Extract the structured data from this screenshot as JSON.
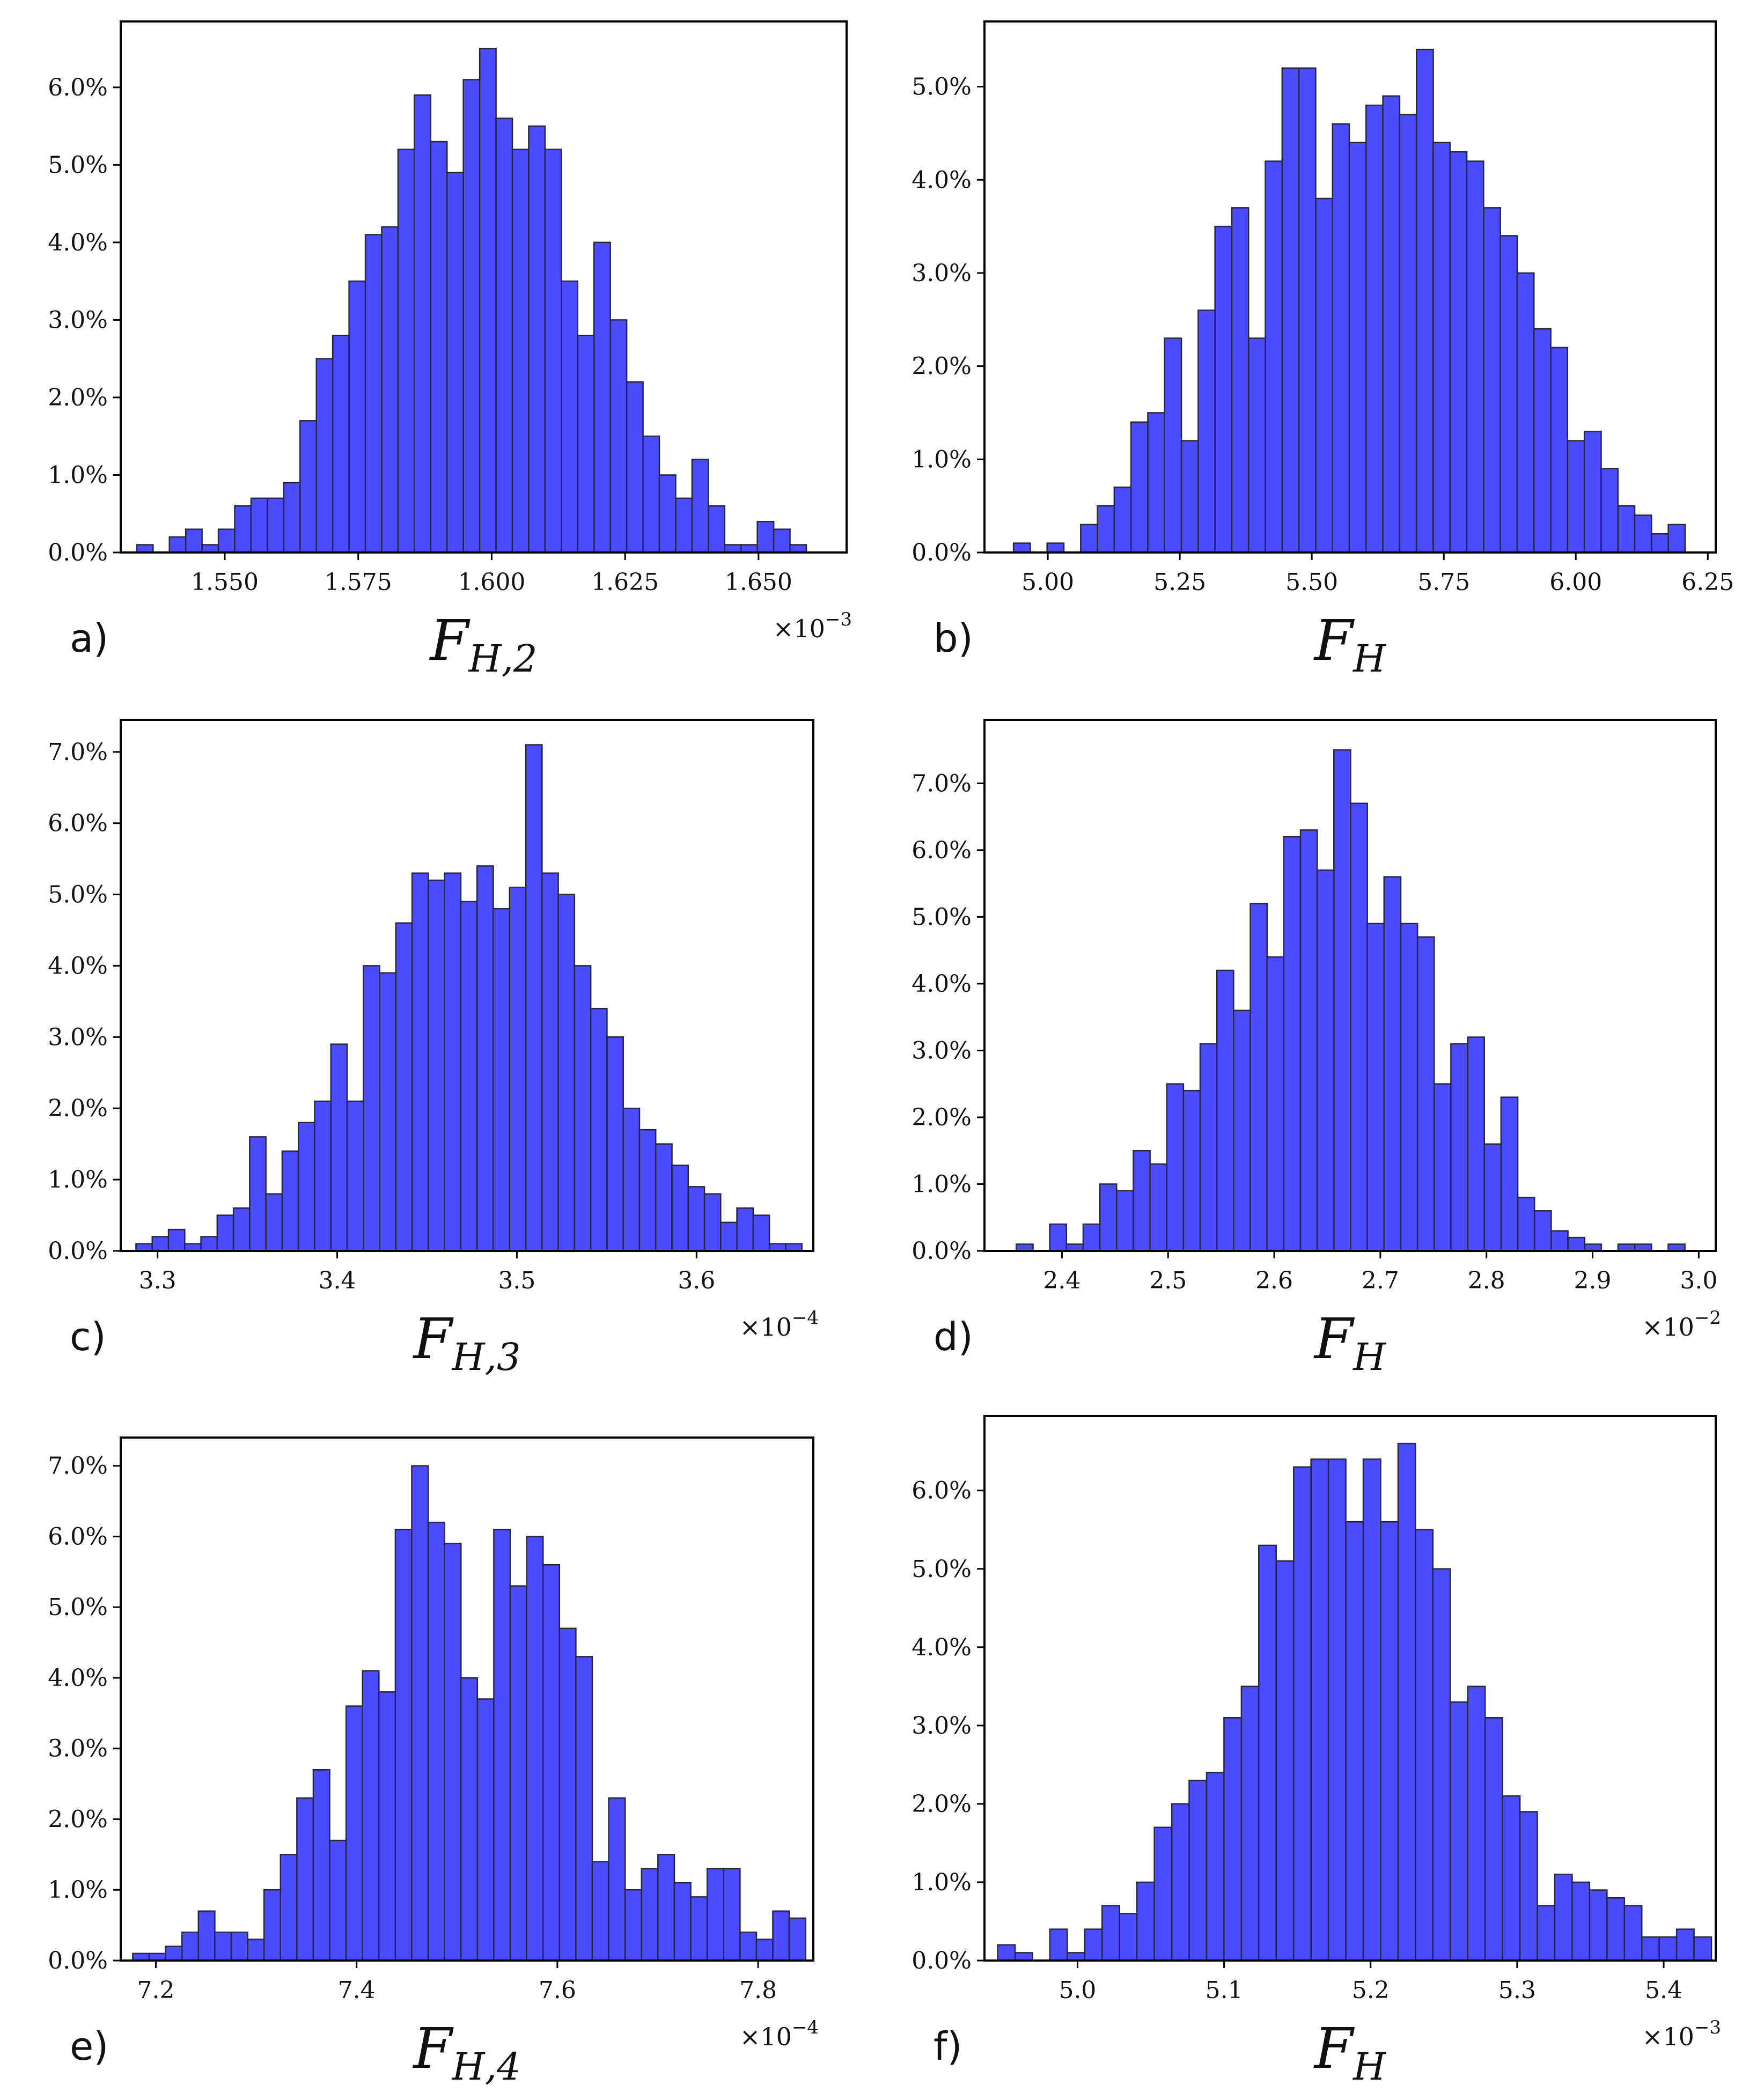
{
  "chart_data": [
    {
      "type": "bar",
      "panel": "a)",
      "xlabel_main": "F",
      "xlabel_sub": "H,2",
      "offset_base": "×10",
      "offset_exp": "−3",
      "ylabel": "",
      "xlim": [
        1.5305,
        1.6665
      ],
      "ylim": [
        0,
        6.85
      ],
      "xticks": [
        1.55,
        1.575,
        1.6,
        1.625,
        1.65
      ],
      "xtick_labels": [
        "1.550",
        "1.575",
        "1.600",
        "1.625",
        "1.650"
      ],
      "yticks": [
        0,
        1,
        2,
        3,
        4,
        5,
        6
      ],
      "ytick_labels": [
        "0.0%",
        "1.0%",
        "2.0%",
        "3.0%",
        "4.0%",
        "5.0%",
        "6.0%"
      ],
      "bin_start": 1.5335,
      "bin_width": 0.00306,
      "values": [
        0.1,
        0.0,
        0.2,
        0.3,
        0.1,
        0.3,
        0.6,
        0.7,
        0.7,
        0.9,
        1.7,
        2.5,
        2.8,
        3.5,
        4.1,
        4.2,
        5.2,
        5.9,
        5.3,
        4.9,
        6.1,
        6.5,
        5.6,
        5.2,
        5.5,
        5.2,
        3.5,
        2.8,
        4.0,
        3.0,
        2.2,
        1.5,
        1.0,
        0.7,
        1.2,
        0.6,
        0.1,
        0.1,
        0.4,
        0.3,
        0.1
      ]
    },
    {
      "type": "bar",
      "panel": "b)",
      "xlabel_main": "F",
      "xlabel_sub": "H",
      "offset_base": "",
      "offset_exp": "",
      "ylabel": "",
      "xlim": [
        4.88,
        6.265
      ],
      "ylim": [
        0,
        5.7
      ],
      "xticks": [
        5.0,
        5.25,
        5.5,
        5.75,
        6.0,
        6.25
      ],
      "xtick_labels": [
        "5.00",
        "5.25",
        "5.50",
        "5.75",
        "6.00",
        "6.25"
      ],
      "yticks": [
        0,
        1,
        2,
        3,
        4,
        5
      ],
      "ytick_labels": [
        "0.0%",
        "1.0%",
        "2.0%",
        "3.0%",
        "4.0%",
        "5.0%"
      ],
      "bin_start": 4.935,
      "bin_width": 0.0318,
      "values": [
        0.1,
        0.0,
        0.1,
        0.0,
        0.3,
        0.5,
        0.7,
        1.4,
        1.5,
        2.3,
        1.2,
        2.6,
        3.5,
        3.7,
        2.3,
        4.2,
        5.2,
        5.2,
        3.8,
        4.6,
        4.4,
        4.8,
        4.9,
        4.7,
        5.4,
        4.4,
        4.3,
        4.2,
        3.7,
        3.4,
        3.0,
        2.4,
        2.2,
        1.2,
        1.3,
        0.9,
        0.5,
        0.4,
        0.2,
        0.3
      ]
    },
    {
      "type": "bar",
      "panel": "c)",
      "xlabel_main": "F",
      "xlabel_sub": "H,3",
      "offset_base": "×10",
      "offset_exp": "−4",
      "ylabel": "",
      "xlim": [
        3.2795,
        3.665
      ],
      "ylim": [
        0,
        7.45
      ],
      "xticks": [
        3.3,
        3.4,
        3.5,
        3.6
      ],
      "xtick_labels": [
        "3.3",
        "3.4",
        "3.5",
        "3.6"
      ],
      "yticks": [
        0,
        1,
        2,
        3,
        4,
        5,
        6,
        7
      ],
      "ytick_labels": [
        "0.0%",
        "1.0%",
        "2.0%",
        "3.0%",
        "4.0%",
        "5.0%",
        "6.0%",
        "7.0%"
      ],
      "bin_start": 3.288,
      "bin_width": 0.00904,
      "values": [
        0.1,
        0.2,
        0.3,
        0.1,
        0.2,
        0.5,
        0.6,
        1.6,
        0.8,
        1.4,
        1.8,
        2.1,
        2.9,
        2.1,
        4.0,
        3.9,
        4.6,
        5.3,
        5.2,
        5.3,
        4.9,
        5.4,
        4.8,
        5.1,
        7.1,
        5.3,
        5.0,
        4.0,
        3.4,
        3.0,
        2.0,
        1.7,
        1.5,
        1.2,
        0.9,
        0.8,
        0.4,
        0.6,
        0.5,
        0.1,
        0.1
      ]
    },
    {
      "type": "bar",
      "panel": "d)",
      "xlabel_main": "F",
      "xlabel_sub": "H",
      "offset_base": "×10",
      "offset_exp": "−2",
      "ylabel": "",
      "xlim": [
        2.327,
        3.016
      ],
      "ylim": [
        0,
        7.95
      ],
      "xticks": [
        2.4,
        2.5,
        2.6,
        2.7,
        2.8,
        2.9,
        3.0
      ],
      "xtick_labels": [
        "2.4",
        "2.5",
        "2.6",
        "2.7",
        "2.8",
        "2.9",
        "3.0"
      ],
      "yticks": [
        0,
        1,
        2,
        3,
        4,
        5,
        6,
        7
      ],
      "ytick_labels": [
        "0.0%",
        "1.0%",
        "2.0%",
        "3.0%",
        "4.0%",
        "5.0%",
        "6.0%",
        "7.0%"
      ],
      "bin_start": 2.357,
      "bin_width": 0.01575,
      "values": [
        0.1,
        0.0,
        0.4,
        0.1,
        0.4,
        1.0,
        0.9,
        1.5,
        1.3,
        2.5,
        2.4,
        3.1,
        4.2,
        3.6,
        5.2,
        4.4,
        6.2,
        6.3,
        5.7,
        7.5,
        6.7,
        4.9,
        5.6,
        4.9,
        4.7,
        2.5,
        3.1,
        3.2,
        1.6,
        2.3,
        0.8,
        0.6,
        0.3,
        0.2,
        0.1,
        0.0,
        0.1,
        0.1,
        0.0,
        0.1
      ]
    },
    {
      "type": "bar",
      "panel": "e)",
      "xlabel_main": "F",
      "xlabel_sub": "H,4",
      "offset_base": "×10",
      "offset_exp": "−4",
      "ylabel": "",
      "xlim": [
        7.165,
        7.855
      ],
      "ylim": [
        0,
        7.4
      ],
      "xticks": [
        7.2,
        7.4,
        7.6,
        7.8
      ],
      "xtick_labels": [
        "7.2",
        "7.4",
        "7.6",
        "7.8"
      ],
      "yticks": [
        0,
        1,
        2,
        3,
        4,
        5,
        6,
        7
      ],
      "ytick_labels": [
        "0.0%",
        "1.0%",
        "2.0%",
        "3.0%",
        "4.0%",
        "5.0%",
        "6.0%",
        "7.0%"
      ],
      "bin_start": 7.177,
      "bin_width": 0.01635,
      "values": [
        0.1,
        0.1,
        0.2,
        0.4,
        0.7,
        0.4,
        0.4,
        0.3,
        1.0,
        1.5,
        2.3,
        2.7,
        1.7,
        3.6,
        4.1,
        3.8,
        6.1,
        7.0,
        6.2,
        5.9,
        4.0,
        3.7,
        6.1,
        5.3,
        6.0,
        5.6,
        4.7,
        4.3,
        1.4,
        2.3,
        1.0,
        1.3,
        1.5,
        1.1,
        0.9,
        1.3,
        1.3,
        0.4,
        0.3,
        0.7,
        0.6
      ]
    },
    {
      "type": "bar",
      "panel": "f)",
      "xlabel_main": "F",
      "xlabel_sub": "H",
      "offset_base": "×10",
      "offset_exp": "−3",
      "ylabel": "",
      "xlim": [
        4.9365,
        5.4355
      ],
      "ylim": [
        0,
        6.95
      ],
      "xticks": [
        5.0,
        5.1,
        5.2,
        5.3,
        5.4
      ],
      "xtick_labels": [
        "5.0",
        "5.1",
        "5.2",
        "5.3",
        "5.4"
      ],
      "yticks": [
        0,
        1,
        2,
        3,
        4,
        5,
        6
      ],
      "ytick_labels": [
        "0.0%",
        "1.0%",
        "2.0%",
        "3.0%",
        "4.0%",
        "5.0%",
        "6.0%"
      ],
      "bin_start": 4.9455,
      "bin_width": 0.01188,
      "values": [
        0.2,
        0.1,
        0.0,
        0.4,
        0.1,
        0.4,
        0.7,
        0.6,
        1.0,
        1.7,
        2.0,
        2.3,
        2.4,
        3.1,
        3.5,
        5.3,
        5.1,
        6.3,
        6.4,
        6.4,
        5.6,
        6.4,
        5.6,
        6.6,
        5.5,
        5.0,
        3.3,
        3.5,
        3.1,
        2.1,
        1.9,
        0.7,
        1.1,
        1.0,
        0.9,
        0.8,
        0.7,
        0.3,
        0.3,
        0.4,
        0.3
      ]
    }
  ]
}
